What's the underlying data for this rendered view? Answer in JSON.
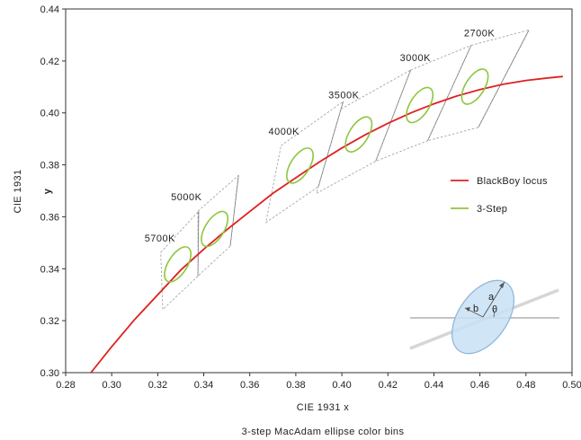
{
  "chart_data": {
    "type": "line",
    "caption": "3-step MacAdam ellipse color bins",
    "xlabel": "CIE 1931 x",
    "ylabel_outer": "CIE 1931",
    "ylabel_inner": "y",
    "xlim": [
      0.28,
      0.5
    ],
    "ylim": [
      0.3,
      0.44
    ],
    "xticks": [
      "0.28",
      "0.30",
      "0.32",
      "0.34",
      "0.36",
      "0.38",
      "0.40",
      "0.42",
      "0.44",
      "0.46",
      "0.48",
      "0.50"
    ],
    "yticks": [
      "0.30",
      "0.32",
      "0.34",
      "0.36",
      "0.38",
      "0.40",
      "0.42",
      "0.44"
    ],
    "grid": false,
    "legend_position": "right",
    "legend": [
      {
        "label": "BlackBoy locus",
        "color": "#e02020"
      },
      {
        "label": "3-Step",
        "color": "#8dc63f"
      }
    ],
    "locus": {
      "name": "BlackBoy locus",
      "color": "#e02020",
      "x": [
        0.291,
        0.3,
        0.31,
        0.32,
        0.33,
        0.34,
        0.35,
        0.36,
        0.37,
        0.38,
        0.39,
        0.4,
        0.41,
        0.42,
        0.43,
        0.44,
        0.45,
        0.46,
        0.47,
        0.48,
        0.49,
        0.496
      ],
      "y": [
        0.3,
        0.31,
        0.3205,
        0.33,
        0.3395,
        0.3475,
        0.355,
        0.362,
        0.369,
        0.375,
        0.381,
        0.3865,
        0.3915,
        0.396,
        0.4,
        0.4035,
        0.4065,
        0.409,
        0.411,
        0.4125,
        0.4135,
        0.414
      ]
    },
    "bins": [
      {
        "label": "5700K",
        "center": [
          0.3287,
          0.3417
        ],
        "quad": [
          [
            0.3213,
            0.3463
          ],
          [
            0.3378,
            0.3622
          ],
          [
            0.3375,
            0.3372
          ],
          [
            0.3222,
            0.3243
          ]
        ]
      },
      {
        "label": "5000K",
        "center": [
          0.3447,
          0.3553
        ],
        "quad": [
          [
            0.3375,
            0.3622
          ],
          [
            0.3551,
            0.3759
          ],
          [
            0.3515,
            0.3487
          ],
          [
            0.3375,
            0.3372
          ]
        ]
      },
      {
        "label": "4000K",
        "center": [
          0.3818,
          0.3797
        ],
        "quad": [
          [
            0.3736,
            0.3874
          ],
          [
            0.4006,
            0.4044
          ],
          [
            0.3898,
            0.3716
          ],
          [
            0.367,
            0.3578
          ]
        ]
      },
      {
        "label": "3500K",
        "center": [
          0.4073,
          0.3917
        ],
        "quad": [
          [
            0.3996,
            0.4015
          ],
          [
            0.4299,
            0.4165
          ],
          [
            0.4147,
            0.3814
          ],
          [
            0.3889,
            0.369
          ]
        ]
      },
      {
        "label": "3000K",
        "center": [
          0.4338,
          0.403
        ],
        "quad": [
          [
            0.4299,
            0.4165
          ],
          [
            0.4562,
            0.426
          ],
          [
            0.4373,
            0.3893
          ],
          [
            0.4147,
            0.3814
          ]
        ]
      },
      {
        "label": "2700K",
        "center": [
          0.4578,
          0.4101
        ],
        "quad": [
          [
            0.4562,
            0.426
          ],
          [
            0.4813,
            0.4319
          ],
          [
            0.4593,
            0.3944
          ],
          [
            0.4373,
            0.3893
          ]
        ]
      }
    ],
    "inset": {
      "type": "ellipse-diagram",
      "labels": [
        "a",
        "b",
        "θ"
      ],
      "fill_color": "#c8e1f4",
      "stroke_color": "#8cb4d8"
    }
  }
}
